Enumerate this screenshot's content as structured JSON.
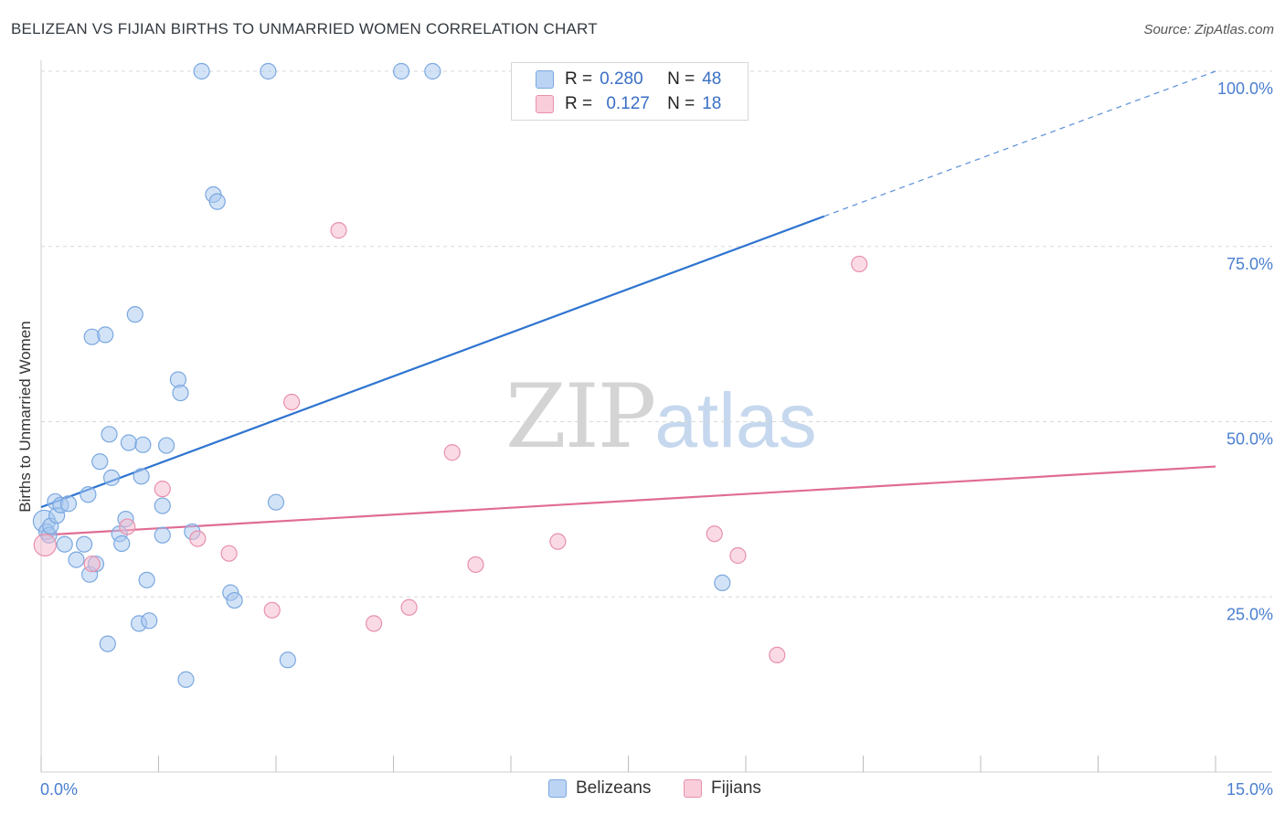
{
  "title": "BELIZEAN VS FIJIAN BIRTHS TO UNMARRIED WOMEN CORRELATION CHART",
  "source": "Source: ZipAtlas.com",
  "watermark": {
    "zip": "ZIP",
    "atlas": "atlas"
  },
  "legend": {
    "series": [
      {
        "r_label": "R =",
        "r_value": "0.280",
        "n_label": "N =",
        "n_value": "48",
        "color": "#a8c8f0"
      },
      {
        "r_label": "R =",
        "r_value": "0.127",
        "n_label": "N =",
        "n_value": "18",
        "color": "#f5b8cb"
      }
    ]
  },
  "bottom_legend": [
    "Belizeans",
    "Fijians"
  ],
  "chart_data": {
    "type": "scatter",
    "title": "BELIZEAN VS FIJIAN BIRTHS TO UNMARRIED WOMEN CORRELATION CHART",
    "xlabel": "",
    "ylabel": "Births to Unmarried Women",
    "xlim": [
      0,
      15
    ],
    "ylim": [
      0,
      100
    ],
    "x_ticks": [
      "0.0%",
      "15.0%"
    ],
    "y_ticks": [
      {
        "value": 25,
        "label": "25.0%"
      },
      {
        "value": 50,
        "label": "50.0%"
      },
      {
        "value": 75,
        "label": "75.0%"
      },
      {
        "value": 100,
        "label": "100.0%"
      }
    ],
    "series": [
      {
        "name": "Belizeans",
        "color": "#a8c8f0",
        "stroke": "#7aa8e0",
        "trend": {
          "x0": 0,
          "y0": 37.8,
          "x1": 10.0,
          "y1": 79.3,
          "dash_to_x": 15.0,
          "dash_to_y": 100.0,
          "color": "#2f74d0"
        },
        "points": [
          [
            0.04,
            35.8
          ],
          [
            0.07,
            34.3
          ],
          [
            0.1,
            33.8
          ],
          [
            0.12,
            35.1
          ],
          [
            0.18,
            38.6
          ],
          [
            0.2,
            36.6
          ],
          [
            0.25,
            38.1
          ],
          [
            0.3,
            32.5
          ],
          [
            0.35,
            38.3
          ],
          [
            0.45,
            30.3
          ],
          [
            0.55,
            32.5
          ],
          [
            0.6,
            39.6
          ],
          [
            0.62,
            28.2
          ],
          [
            0.65,
            62.1
          ],
          [
            0.7,
            29.7
          ],
          [
            0.75,
            44.3
          ],
          [
            0.82,
            62.4
          ],
          [
            0.85,
            18.3
          ],
          [
            0.87,
            48.2
          ],
          [
            0.9,
            42.0
          ],
          [
            1.0,
            34.0
          ],
          [
            1.03,
            32.6
          ],
          [
            1.08,
            36.1
          ],
          [
            1.12,
            47.0
          ],
          [
            1.2,
            65.3
          ],
          [
            1.25,
            21.2
          ],
          [
            1.28,
            42.2
          ],
          [
            1.3,
            46.7
          ],
          [
            1.35,
            27.4
          ],
          [
            1.38,
            21.6
          ],
          [
            1.55,
            33.8
          ],
          [
            1.55,
            38.0
          ],
          [
            1.6,
            46.6
          ],
          [
            1.75,
            56.0
          ],
          [
            1.78,
            54.1
          ],
          [
            1.85,
            13.2
          ],
          [
            1.93,
            34.3
          ],
          [
            2.05,
            100.0
          ],
          [
            2.2,
            82.4
          ],
          [
            2.25,
            81.4
          ],
          [
            2.42,
            25.6
          ],
          [
            2.47,
            24.5
          ],
          [
            2.9,
            100.0
          ],
          [
            3.0,
            38.5
          ],
          [
            3.15,
            16.0
          ],
          [
            4.6,
            100.0
          ],
          [
            5.0,
            100.0
          ],
          [
            8.7,
            27.0
          ]
        ]
      },
      {
        "name": "Fijians",
        "color": "#f5b8cb",
        "stroke": "#e890ab",
        "trend": {
          "x0": 0,
          "y0": 33.8,
          "x1": 15.0,
          "y1": 43.6,
          "color": "#e06c94"
        },
        "points": [
          [
            0.05,
            32.4
          ],
          [
            0.65,
            29.7
          ],
          [
            1.1,
            35.0
          ],
          [
            1.55,
            40.4
          ],
          [
            2.0,
            33.3
          ],
          [
            2.4,
            31.2
          ],
          [
            2.95,
            23.1
          ],
          [
            3.2,
            52.8
          ],
          [
            3.8,
            77.3
          ],
          [
            4.25,
            21.2
          ],
          [
            4.7,
            23.5
          ],
          [
            5.25,
            45.6
          ],
          [
            5.55,
            29.6
          ],
          [
            6.6,
            32.9
          ],
          [
            8.6,
            34.0
          ],
          [
            8.9,
            30.9
          ],
          [
            9.4,
            16.7
          ],
          [
            10.45,
            72.5
          ]
        ]
      }
    ]
  }
}
